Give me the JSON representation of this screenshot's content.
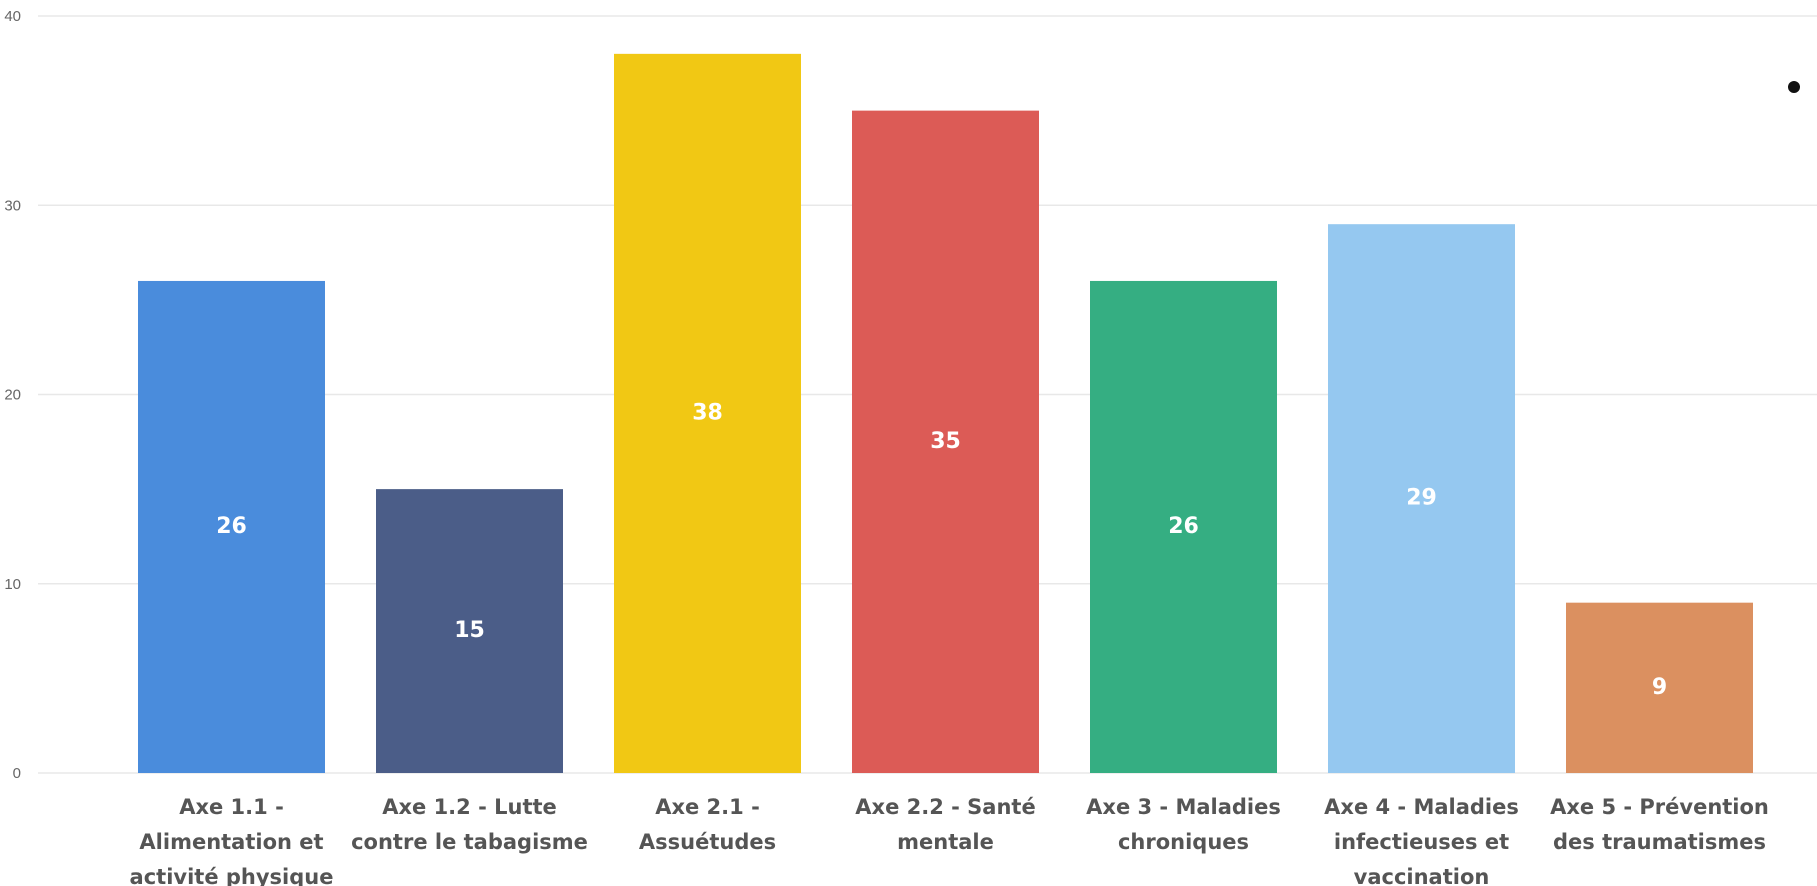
{
  "chart_data": {
    "type": "bar",
    "title": "",
    "xlabel": "",
    "ylabel": "",
    "ylim": [
      0,
      40
    ],
    "yticks": [
      "0",
      "10",
      "20",
      "30",
      "40"
    ],
    "grid": true,
    "legend": "none",
    "categories": [
      [
        "Axe 1.1 -",
        "Alimentation et",
        "activité physique"
      ],
      [
        "Axe 1.2 - Lutte",
        "contre le tabagisme"
      ],
      [
        "Axe 2.1 -",
        "Assuétudes"
      ],
      [
        "Axe 2.2 - Santé",
        "mentale"
      ],
      [
        "Axe 3 - Maladies",
        "chroniques"
      ],
      [
        "Axe 4 - Maladies",
        "infectieuses et",
        "vaccination"
      ],
      [
        "Axe 5 - Prévention",
        "des traumatismes"
      ]
    ],
    "values": [
      26,
      15,
      38,
      35,
      26,
      29,
      9
    ],
    "data_labels": [
      "26",
      "15",
      "38",
      "35",
      "26",
      "29",
      "9"
    ],
    "colors": [
      "#4A8CDC",
      "#4B5D88",
      "#F1C814",
      "#DC5B56",
      "#35AE82",
      "#95C8F0",
      "#DB9060"
    ]
  }
}
